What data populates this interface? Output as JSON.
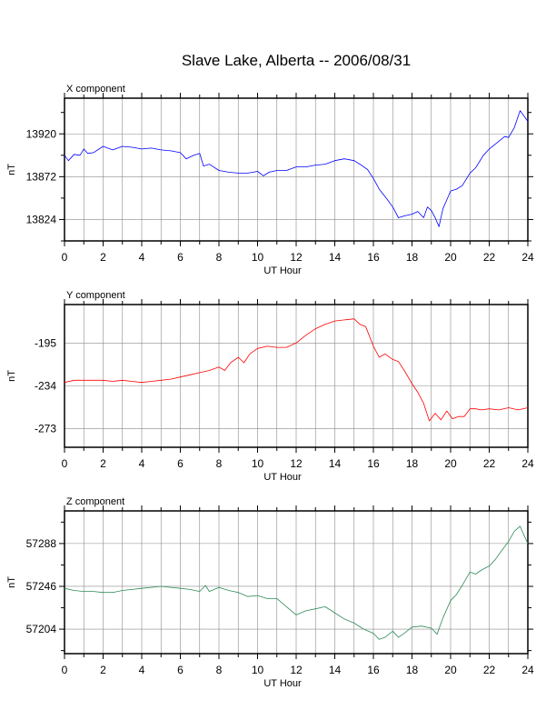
{
  "title": "Slave Lake, Alberta -- 2006/08/31",
  "chart_data": [
    {
      "type": "line",
      "title": "X component",
      "xlabel": "UT Hour",
      "ylabel": "nT",
      "xlim": [
        0,
        24
      ],
      "ylim": [
        13800,
        13960
      ],
      "xticks": [
        0,
        2,
        4,
        6,
        8,
        10,
        12,
        14,
        16,
        18,
        20,
        22,
        24
      ],
      "yticks": [
        13824,
        13872,
        13920
      ],
      "grid": true,
      "color": "#0000ff",
      "series": [
        {
          "x": [
            0,
            0.2,
            0.5,
            0.8,
            1.0,
            1.2,
            1.5,
            2.0,
            2.5,
            3.0,
            3.5,
            4.0,
            4.5,
            5.0,
            5.5,
            6.0,
            6.3,
            6.7,
            7.0,
            7.2,
            7.5,
            8.0,
            8.5,
            9.0,
            9.5,
            10.0,
            10.3,
            10.6,
            11.0,
            11.5,
            12.0,
            12.5,
            13.0,
            13.5,
            14.0,
            14.5,
            15.0,
            15.3,
            15.7,
            16.0,
            16.3,
            16.7,
            17.0,
            17.3,
            17.6,
            18.0,
            18.3,
            18.6,
            18.8,
            19.0,
            19.2,
            19.4,
            19.6,
            19.8,
            20.0,
            20.3,
            20.6,
            21.0,
            21.3,
            21.7,
            22.0,
            22.4,
            22.8,
            23.0,
            23.3,
            23.6,
            24.0
          ],
          "y": [
            13896,
            13890,
            13897,
            13896,
            13903,
            13898,
            13899,
            13906,
            13902,
            13906,
            13905,
            13903,
            13904,
            13902,
            13901,
            13899,
            13892,
            13896,
            13898,
            13884,
            13886,
            13879,
            13877,
            13876,
            13876,
            13878,
            13873,
            13877,
            13879,
            13879,
            13883,
            13883,
            13885,
            13886,
            13890,
            13892,
            13890,
            13886,
            13880,
            13870,
            13858,
            13847,
            13838,
            13826,
            13828,
            13830,
            13833,
            13826,
            13838,
            13834,
            13826,
            13816,
            13836,
            13846,
            13856,
            13858,
            13862,
            13876,
            13882,
            13896,
            13903,
            13910,
            13917,
            13916,
            13927,
            13946,
            13934
          ]
        }
      ]
    },
    {
      "type": "line",
      "title": "Y component",
      "xlabel": "UT Hour",
      "ylabel": "nT",
      "xlim": [
        0,
        24
      ],
      "ylim": [
        -290,
        -160
      ],
      "xticks": [
        0,
        2,
        4,
        6,
        8,
        10,
        12,
        14,
        16,
        18,
        20,
        22,
        24
      ],
      "yticks": [
        -195,
        -234,
        -273
      ],
      "grid": true,
      "color": "#ff0000",
      "series": [
        {
          "x": [
            0,
            0.5,
            1.0,
            1.5,
            2.0,
            2.5,
            3.0,
            3.5,
            4.0,
            4.5,
            5.0,
            5.5,
            6.0,
            6.5,
            7.0,
            7.5,
            8.0,
            8.3,
            8.6,
            9.0,
            9.3,
            9.6,
            10.0,
            10.5,
            11.0,
            11.5,
            12.0,
            12.5,
            13.0,
            13.5,
            14.0,
            14.5,
            15.0,
            15.3,
            15.6,
            16.0,
            16.3,
            16.6,
            17.0,
            17.3,
            17.6,
            18.0,
            18.3,
            18.6,
            18.9,
            19.2,
            19.5,
            19.8,
            20.1,
            20.4,
            20.7,
            21.0,
            21.3,
            21.6,
            22.0,
            22.5,
            23.0,
            23.5,
            24.0
          ],
          "y": [
            -231,
            -229,
            -229,
            -229,
            -229,
            -230,
            -229,
            -230,
            -231,
            -230,
            -229,
            -228,
            -226,
            -224,
            -222,
            -220,
            -217,
            -220,
            -213,
            -208,
            -213,
            -205,
            -200,
            -198,
            -199,
            -199,
            -195,
            -188,
            -182,
            -178,
            -175,
            -174,
            -173,
            -178,
            -180,
            -198,
            -208,
            -205,
            -210,
            -212,
            -220,
            -232,
            -240,
            -250,
            -266,
            -259,
            -265,
            -257,
            -264,
            -262,
            -262,
            -255,
            -255,
            -256,
            -255,
            -256,
            -254,
            -256,
            -254
          ]
        }
      ]
    },
    {
      "type": "line",
      "title": "Z component",
      "xlabel": "UT Hour",
      "ylabel": "nT",
      "xlim": [
        0,
        24
      ],
      "ylim": [
        57180,
        57320
      ],
      "xticks": [
        0,
        2,
        4,
        6,
        8,
        10,
        12,
        14,
        16,
        18,
        20,
        22,
        24
      ],
      "yticks": [
        57204,
        57246,
        57288
      ],
      "grid": true,
      "color": "#2e8b57",
      "series": [
        {
          "x": [
            0,
            0.5,
            1.0,
            1.5,
            2.0,
            2.5,
            3.0,
            3.5,
            4.0,
            4.5,
            5.0,
            5.5,
            6.0,
            6.5,
            7.0,
            7.3,
            7.5,
            8.0,
            8.5,
            9.0,
            9.5,
            10.0,
            10.5,
            11.0,
            11.5,
            12.0,
            12.5,
            13.0,
            13.5,
            14.0,
            14.5,
            15.0,
            15.5,
            16.0,
            16.3,
            16.6,
            17.0,
            17.3,
            17.6,
            18.0,
            18.5,
            19.0,
            19.3,
            19.6,
            20.0,
            20.3,
            20.6,
            21.0,
            21.3,
            21.6,
            22.0,
            22.3,
            22.6,
            23.0,
            23.3,
            23.6,
            23.8,
            24.0
          ],
          "y": [
            57244,
            57242,
            57241,
            57241,
            57240,
            57240,
            57242,
            57243,
            57244,
            57245,
            57246,
            57245,
            57244,
            57243,
            57241,
            57247,
            57241,
            57245,
            57242,
            57240,
            57236,
            57237,
            57234,
            57234,
            57226,
            57218,
            57222,
            57224,
            57226,
            57220,
            57214,
            57210,
            57204,
            57200,
            57194,
            57196,
            57202,
            57196,
            57200,
            57206,
            57207,
            57205,
            57199,
            57215,
            57232,
            57238,
            57247,
            57260,
            57258,
            57262,
            57266,
            57272,
            57280,
            57290,
            57300,
            57305,
            57296,
            57288
          ]
        }
      ]
    }
  ]
}
